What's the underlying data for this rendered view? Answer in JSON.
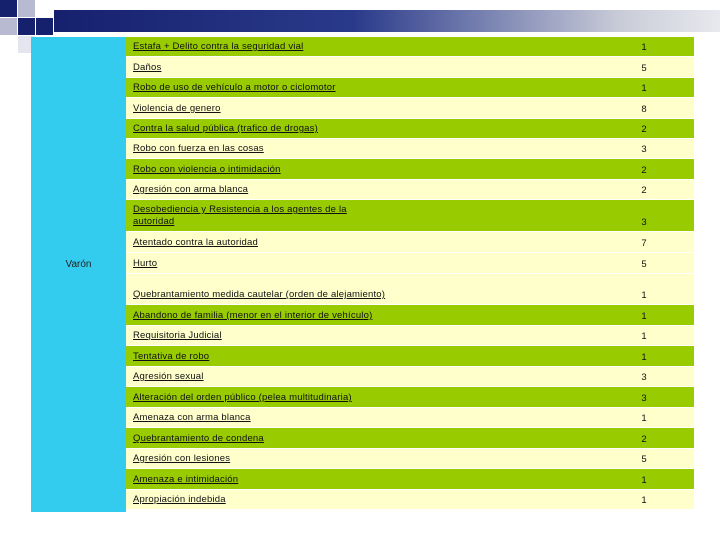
{
  "group_label": "Varón",
  "rows": [
    {
      "crime": "Estafa + Delito contra la seguridad vial",
      "count": "1"
    },
    {
      "crime": "Daños",
      "count": "5"
    },
    {
      "crime": "Robo de uso de vehículo a motor o ciclomotor",
      "count": "1"
    },
    {
      "crime": "Violencia de genero",
      "count": "8"
    },
    {
      "crime": "Contra la salud pública (trafico de drogas)",
      "count": "2"
    },
    {
      "crime": "Robo con fuerza en las cosas",
      "count": "3"
    },
    {
      "crime": "Robo con violencia o intimidación",
      "count": "2"
    },
    {
      "crime": "Agresión con arma blanca",
      "count": "2"
    },
    {
      "crime": "Desobediencia y Resistencia a los agentes de la autoridad",
      "count": "3"
    },
    {
      "crime": "Atentado contra la autoridad",
      "count": "7"
    },
    {
      "crime": "Hurto",
      "count": "5"
    },
    {
      "crime": "Quebrantamiento medida cautelar (orden de alejamiento)",
      "count": "1"
    },
    {
      "crime": "Abandono de familia (menor en el interior de vehículo)",
      "count": "1"
    },
    {
      "crime": "Requisitoria Judicial",
      "count": "1"
    },
    {
      "crime": "Tentativa de robo",
      "count": "1"
    },
    {
      "crime": "Agresión sexual",
      "count": "3"
    },
    {
      "crime": "Alteración del orden público (pelea multitudinaria)",
      "count": "3"
    },
    {
      "crime": "Amenaza con arma blanca",
      "count": "1"
    },
    {
      "crime": "Quebrantamiento de condena",
      "count": "2"
    },
    {
      "crime": "Agresión con lesiones",
      "count": "5"
    },
    {
      "crime": "Amenaza e intimidación",
      "count": "1"
    },
    {
      "crime": "Apropiación indebida",
      "count": "1"
    }
  ]
}
